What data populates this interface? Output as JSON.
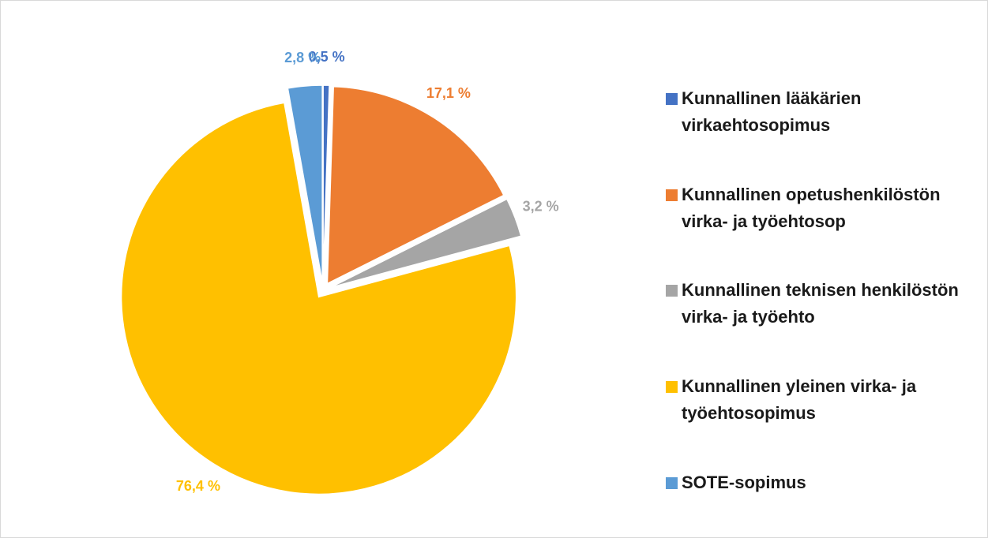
{
  "chart_data": {
    "type": "pie",
    "categories": [
      "Kunnallinen lääkärien virkaehtosopimus",
      "Kunnallinen opetushenkilöstön virka- ja työehtosop",
      "Kunnallinen teknisen henkilöstön virka- ja työehto",
      "Kunnallinen yleinen virka- ja työehtosopimus",
      "SOTE-sopimus"
    ],
    "values": [
      0.5,
      17.1,
      3.2,
      76.4,
      2.8
    ],
    "value_labels": [
      "0,5 %",
      "17,1 %",
      "3,2 %",
      "76,4 %",
      "2,8 %"
    ],
    "colors": [
      "#4472c4",
      "#ed7d31",
      "#a5a5a5",
      "#ffc000",
      "#5b9bd5"
    ],
    "legend": "right"
  }
}
